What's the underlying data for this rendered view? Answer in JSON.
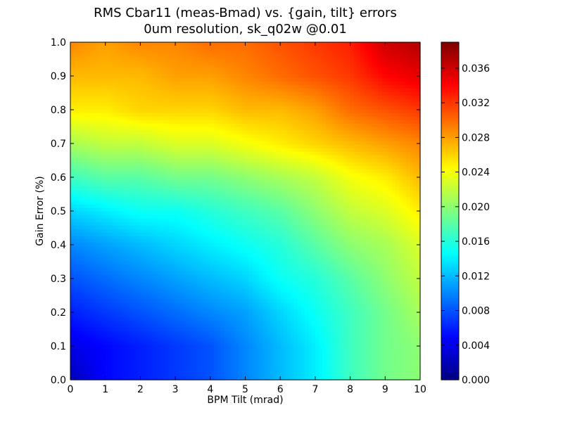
{
  "chart_data": {
    "type": "heatmap",
    "title_lines": [
      "RMS Cbar11 (meas-Bmad) vs. {gain, tilt} errors",
      "0um resolution, sk_q02w @0.01"
    ],
    "xlabel": "BPM Tilt (mrad)",
    "ylabel": "Gain Error (%)",
    "xlim": [
      0,
      10
    ],
    "ylim": [
      0,
      1.0
    ],
    "x_ticks": [
      "0",
      "1",
      "2",
      "3",
      "4",
      "5",
      "6",
      "7",
      "8",
      "9",
      "10"
    ],
    "y_ticks": [
      "0.0",
      "0.1",
      "0.2",
      "0.3",
      "0.4",
      "0.5",
      "0.6",
      "0.7",
      "0.8",
      "0.9",
      "1.0"
    ],
    "colorbar": {
      "range": [
        0.0,
        0.039
      ],
      "ticks": [
        "0.000",
        "0.004",
        "0.008",
        "0.012",
        "0.016",
        "0.020",
        "0.024",
        "0.028",
        "0.032",
        "0.036"
      ],
      "colormap": "jet"
    },
    "x": [
      0,
      1,
      2,
      3,
      4,
      5,
      6,
      7,
      8,
      9,
      10
    ],
    "y": [
      0.0,
      0.1,
      0.2,
      0.3,
      0.4,
      0.5,
      0.6,
      0.7,
      0.8,
      0.9,
      1.0
    ],
    "z": [
      [
        0.002,
        0.005,
        0.006,
        0.007,
        0.008,
        0.01,
        0.012,
        0.014,
        0.017,
        0.019,
        0.02
      ],
      [
        0.004,
        0.005,
        0.006,
        0.007,
        0.008,
        0.01,
        0.012,
        0.014,
        0.017,
        0.019,
        0.02
      ],
      [
        0.006,
        0.007,
        0.008,
        0.009,
        0.01,
        0.011,
        0.013,
        0.015,
        0.017,
        0.019,
        0.021
      ],
      [
        0.008,
        0.009,
        0.01,
        0.011,
        0.012,
        0.013,
        0.015,
        0.016,
        0.018,
        0.02,
        0.022
      ],
      [
        0.01,
        0.011,
        0.012,
        0.013,
        0.014,
        0.015,
        0.016,
        0.018,
        0.02,
        0.021,
        0.023
      ],
      [
        0.013,
        0.014,
        0.015,
        0.015,
        0.016,
        0.017,
        0.018,
        0.02,
        0.022,
        0.023,
        0.025
      ],
      [
        0.017,
        0.018,
        0.018,
        0.019,
        0.019,
        0.02,
        0.021,
        0.022,
        0.024,
        0.025,
        0.027
      ],
      [
        0.021,
        0.022,
        0.022,
        0.023,
        0.023,
        0.024,
        0.025,
        0.026,
        0.027,
        0.028,
        0.029
      ],
      [
        0.025,
        0.025,
        0.026,
        0.026,
        0.026,
        0.027,
        0.027,
        0.028,
        0.03,
        0.031,
        0.032
      ],
      [
        0.027,
        0.027,
        0.027,
        0.028,
        0.028,
        0.029,
        0.03,
        0.031,
        0.032,
        0.034,
        0.035
      ],
      [
        0.029,
        0.028,
        0.029,
        0.029,
        0.03,
        0.03,
        0.031,
        0.032,
        0.033,
        0.036,
        0.037
      ]
    ],
    "grid": false
  }
}
